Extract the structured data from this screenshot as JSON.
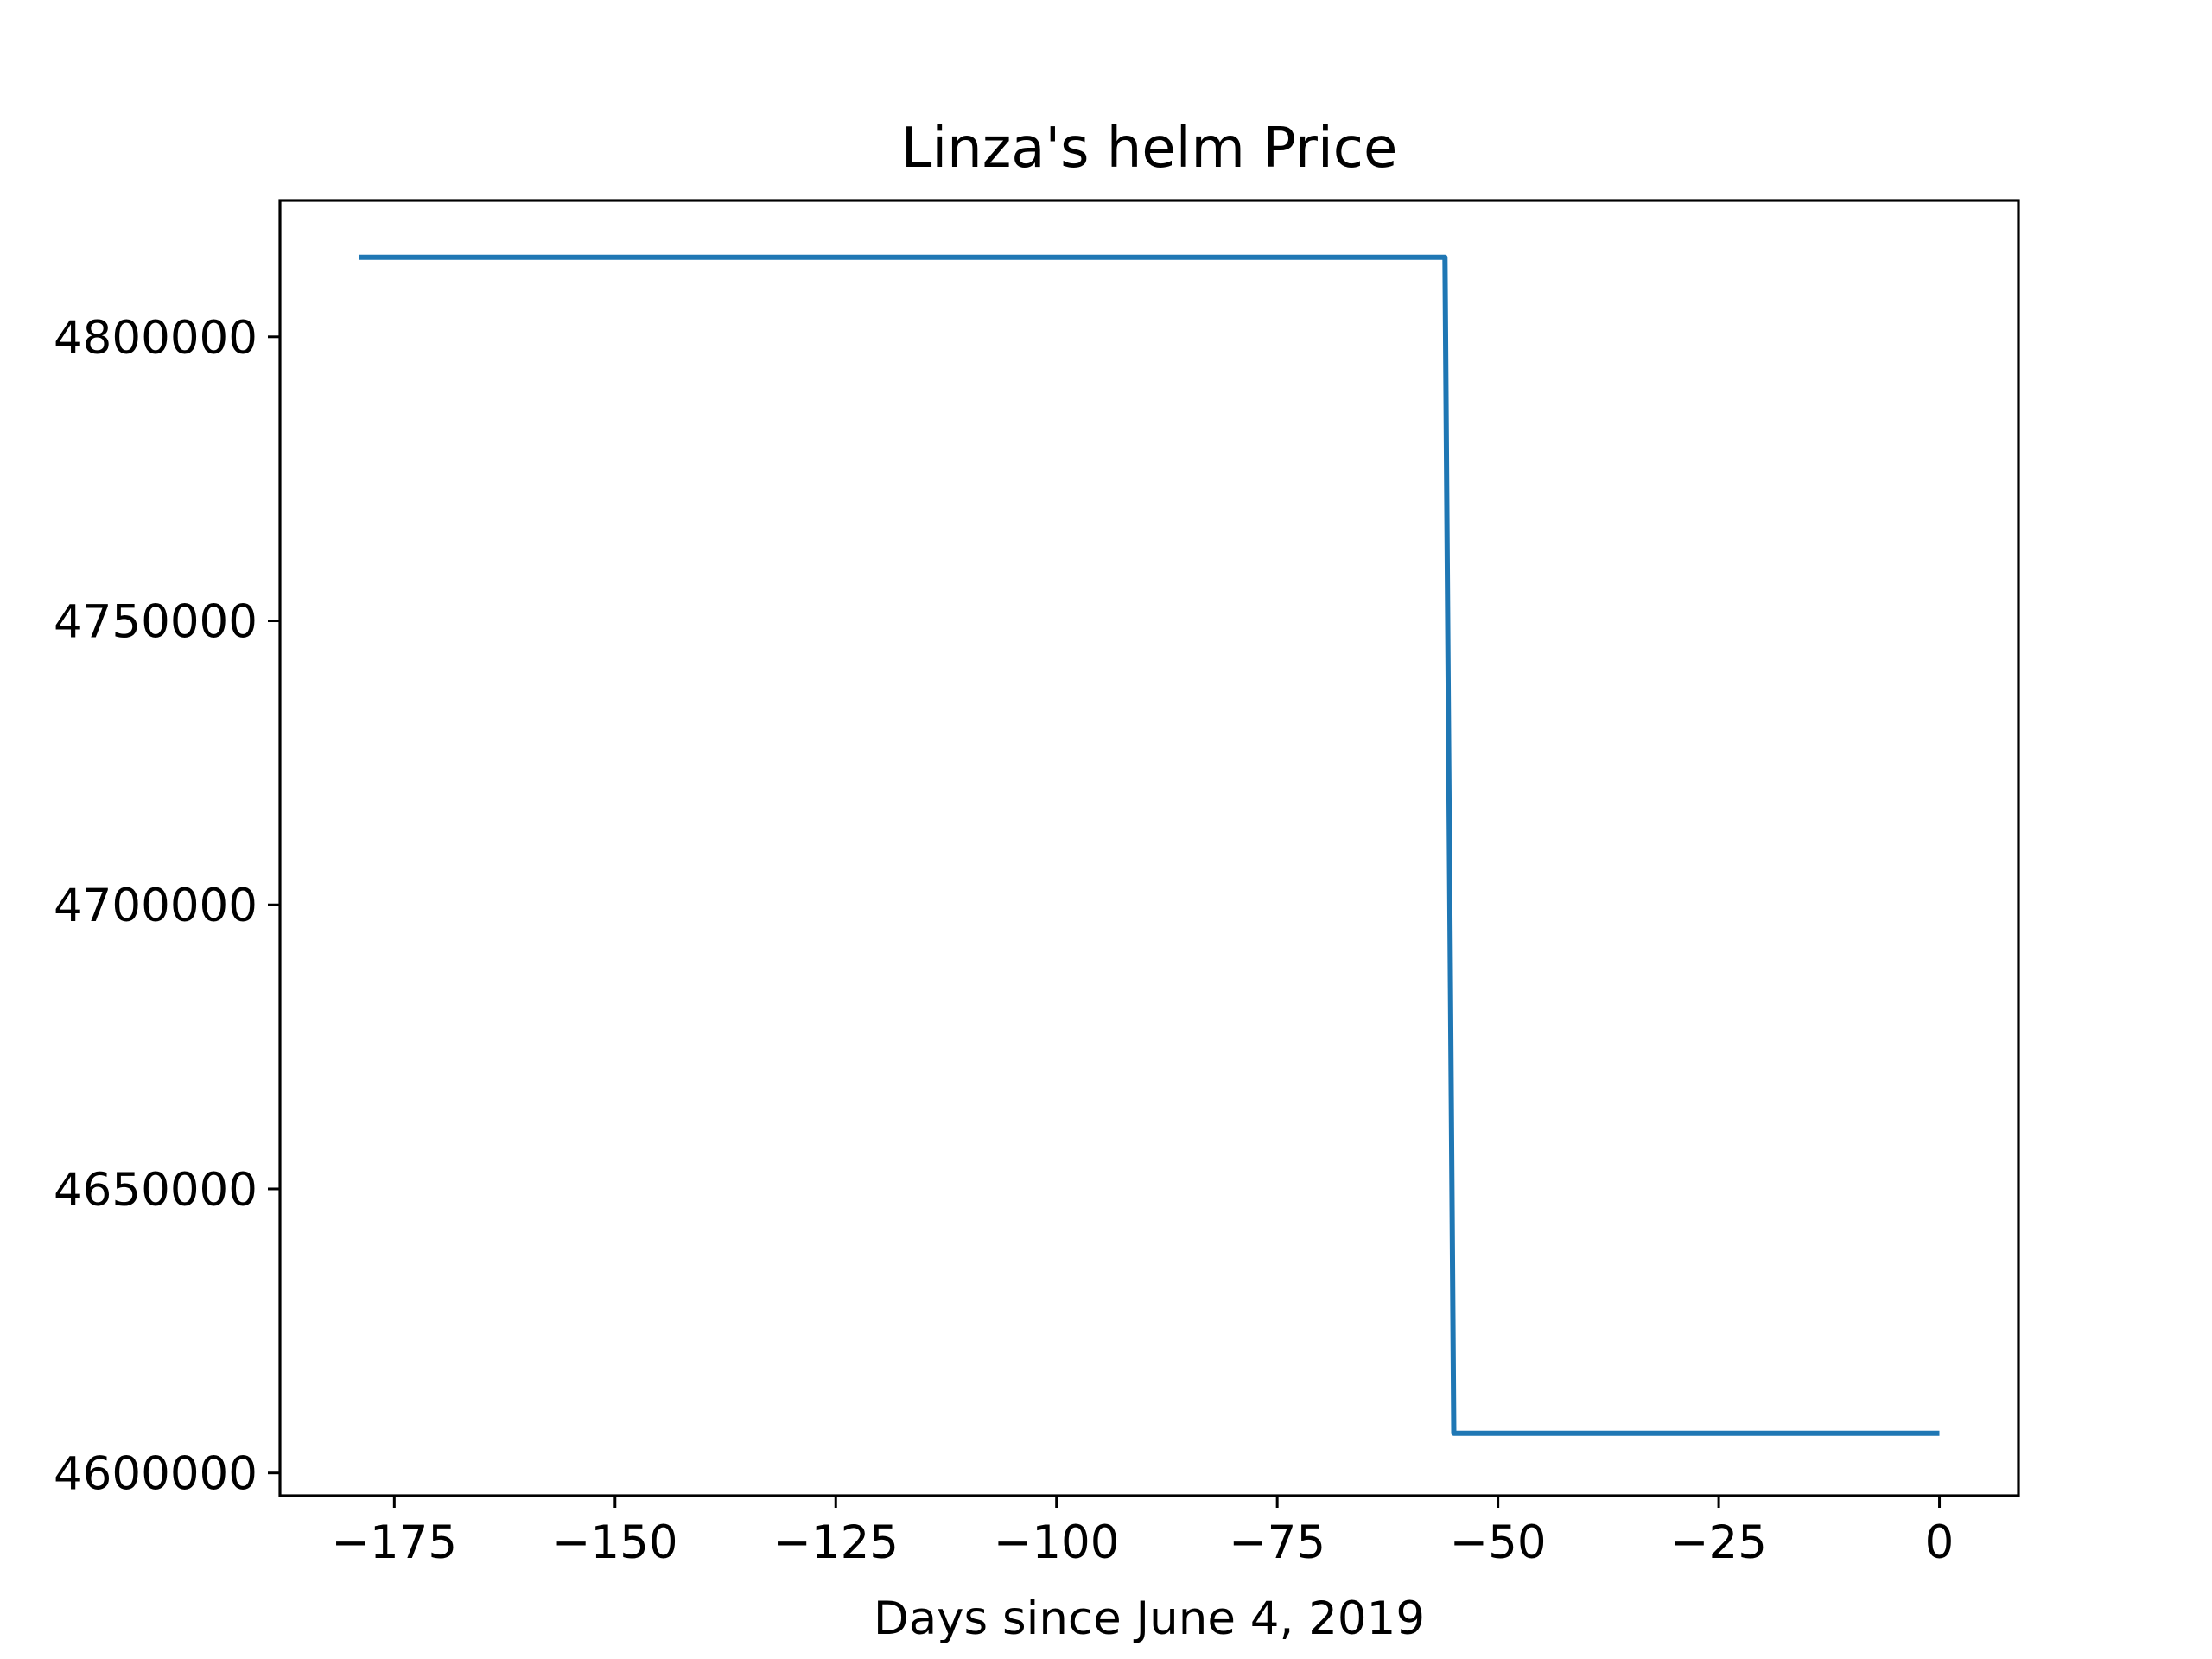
{
  "chart_data": {
    "type": "line",
    "title": "Linza's helm Price",
    "xlabel": "Days since June 4, 2019",
    "ylabel": "",
    "xlim": [
      -187.95,
      8.95
    ],
    "ylim": [
      4596000,
      4824000
    ],
    "xticks": [
      -175,
      -150,
      -125,
      -100,
      -75,
      -50,
      -25,
      0
    ],
    "xtick_labels": [
      "−175",
      "−150",
      "−125",
      "−100",
      "−75",
      "−50",
      "−25",
      "0"
    ],
    "yticks": [
      4600000,
      4650000,
      4700000,
      4750000,
      4800000
    ],
    "ytick_labels": [
      "4600000",
      "4650000",
      "4700000",
      "4750000",
      "4800000"
    ],
    "grid": false,
    "series": [
      {
        "color": "#1f77b4",
        "x": [
          -179,
          -56,
          -55,
          0
        ],
        "y": [
          4814000,
          4814000,
          4607000,
          4607000
        ]
      }
    ]
  }
}
